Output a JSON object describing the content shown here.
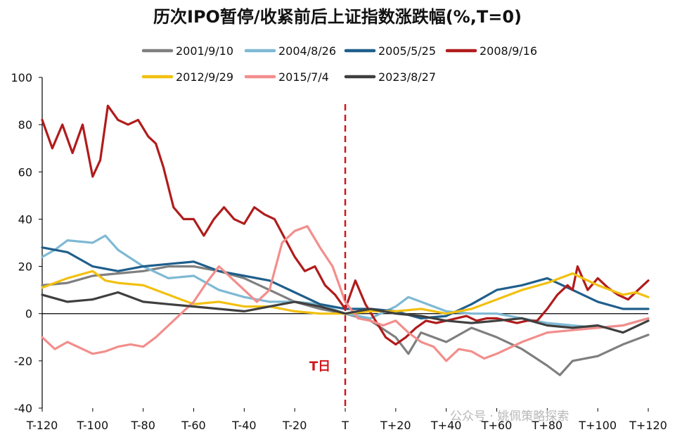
{
  "chart_data": {
    "type": "line",
    "title": "历次IPO暂停/收紧前后上证指数涨跌幅(%,T=0)",
    "xlabel": "",
    "ylabel": "",
    "x_ticks": [
      "T-120",
      "T-100",
      "T-80",
      "T-60",
      "T-40",
      "T-20",
      "T",
      "T+20",
      "T+40",
      "T+60",
      "T+80",
      "T+100",
      "T+120"
    ],
    "xlim": [
      -120,
      120
    ],
    "ylim": [
      -40,
      100
    ],
    "y_ticks": [
      -40,
      -20,
      0,
      20,
      40,
      60,
      80,
      100
    ],
    "annotation": "T日",
    "watermark": "公众号 · 姚佩策略探索",
    "legend_position": "top",
    "series": [
      {
        "name": "2001/9/10",
        "color": "#7f7f7f",
        "x": [
          -120,
          -110,
          -100,
          -90,
          -80,
          -70,
          -60,
          -50,
          -40,
          -30,
          -20,
          -10,
          0,
          10,
          20,
          25,
          30,
          40,
          50,
          60,
          70,
          80,
          85,
          90,
          100,
          110,
          120
        ],
        "y": [
          12,
          13,
          16,
          17,
          18,
          20,
          20,
          18,
          15,
          10,
          5,
          2,
          0,
          -3,
          -10,
          -17,
          -8,
          -12,
          -6,
          -10,
          -15,
          -22,
          -26,
          -20,
          -18,
          -13,
          -9
        ]
      },
      {
        "name": "2004/8/26",
        "color": "#7eb9d4",
        "x": [
          -120,
          -115,
          -110,
          -100,
          -95,
          -90,
          -80,
          -70,
          -60,
          -50,
          -40,
          -30,
          -20,
          -10,
          0,
          10,
          20,
          25,
          30,
          40,
          50,
          60,
          70,
          80,
          90,
          100,
          110,
          120
        ],
        "y": [
          24,
          27,
          31,
          30,
          33,
          27,
          20,
          15,
          16,
          10,
          7,
          5,
          5,
          4,
          0,
          -2,
          3,
          7,
          5,
          1,
          0,
          0,
          -2,
          -4,
          -5,
          -6,
          -5,
          -2
        ]
      },
      {
        "name": "2005/5/25",
        "color": "#1f5f8b",
        "x": [
          -120,
          -110,
          -100,
          -90,
          -80,
          -70,
          -60,
          -50,
          -40,
          -30,
          -20,
          -10,
          0,
          10,
          20,
          30,
          40,
          50,
          60,
          70,
          80,
          90,
          100,
          110,
          120
        ],
        "y": [
          28,
          26,
          20,
          18,
          20,
          21,
          22,
          18,
          16,
          14,
          9,
          4,
          2,
          2,
          1,
          -2,
          -1,
          4,
          10,
          12,
          15,
          10,
          5,
          2,
          2
        ]
      },
      {
        "name": "2008/9/16",
        "color": "#b01c1c",
        "x": [
          -120,
          -116,
          -112,
          -108,
          -104,
          -100,
          -97,
          -94,
          -90,
          -86,
          -82,
          -78,
          -75,
          -72,
          -68,
          -64,
          -60,
          -56,
          -52,
          -48,
          -44,
          -40,
          -36,
          -32,
          -28,
          -24,
          -20,
          -16,
          -12,
          -8,
          -4,
          0,
          4,
          8,
          12,
          16,
          20,
          24,
          28,
          32,
          36,
          40,
          44,
          48,
          52,
          56,
          60,
          64,
          68,
          72,
          76,
          80,
          84,
          88,
          90,
          92,
          96,
          100,
          104,
          108,
          112,
          116,
          120
        ],
        "y": [
          82,
          70,
          80,
          68,
          80,
          58,
          65,
          88,
          82,
          80,
          82,
          75,
          72,
          62,
          45,
          40,
          40,
          33,
          40,
          45,
          40,
          38,
          45,
          42,
          40,
          32,
          24,
          18,
          20,
          12,
          8,
          2,
          14,
          4,
          -3,
          -10,
          -13,
          -10,
          -6,
          -3,
          -4,
          -3,
          -2,
          -1,
          -3,
          -2,
          -2,
          -3,
          -4,
          -3,
          -3,
          2,
          8,
          12,
          10,
          20,
          10,
          15,
          11,
          8,
          6,
          10,
          14
        ]
      },
      {
        "name": "2012/9/29",
        "color": "#f2c010",
        "x": [
          -120,
          -110,
          -100,
          -95,
          -90,
          -80,
          -70,
          -60,
          -50,
          -40,
          -30,
          -20,
          -10,
          0,
          10,
          20,
          30,
          40,
          50,
          60,
          70,
          80,
          90,
          100,
          110,
          115,
          120
        ],
        "y": [
          11,
          15,
          18,
          14,
          13,
          12,
          8,
          4,
          5,
          3,
          3,
          1,
          0,
          0,
          1,
          1,
          2,
          0,
          2,
          6,
          10,
          13,
          17,
          12,
          8,
          9,
          7
        ]
      },
      {
        "name": "2015/7/4",
        "color": "#f28e8c",
        "x": [
          -120,
          -115,
          -110,
          -100,
          -95,
          -90,
          -85,
          -80,
          -75,
          -70,
          -65,
          -60,
          -55,
          -50,
          -45,
          -40,
          -35,
          -30,
          -25,
          -20,
          -15,
          -10,
          -5,
          0,
          5,
          10,
          15,
          20,
          25,
          30,
          35,
          40,
          45,
          50,
          55,
          60,
          70,
          80,
          90,
          100,
          110,
          120
        ],
        "y": [
          -10,
          -15,
          -12,
          -17,
          -16,
          -14,
          -13,
          -14,
          -10,
          -5,
          0,
          5,
          13,
          20,
          15,
          10,
          5,
          10,
          30,
          35,
          37,
          28,
          20,
          5,
          -2,
          -3,
          -5,
          -3,
          -8,
          -12,
          -14,
          -20,
          -15,
          -16,
          -19,
          -17,
          -12,
          -8,
          -7,
          -6,
          -5,
          -2
        ]
      },
      {
        "name": "2023/8/27",
        "color": "#3f3f3f",
        "x": [
          -120,
          -110,
          -100,
          -90,
          -80,
          -70,
          -60,
          -50,
          -40,
          -30,
          -20,
          -10,
          0,
          10,
          20,
          30,
          40,
          50,
          60,
          70,
          80,
          90,
          100,
          110,
          120
        ],
        "y": [
          8,
          5,
          6,
          9,
          5,
          4,
          3,
          2,
          1,
          3,
          5,
          3,
          0,
          2,
          0,
          -1,
          -3,
          -4,
          -3,
          -2,
          -5,
          -6,
          -5,
          -8,
          -3
        ]
      }
    ]
  }
}
